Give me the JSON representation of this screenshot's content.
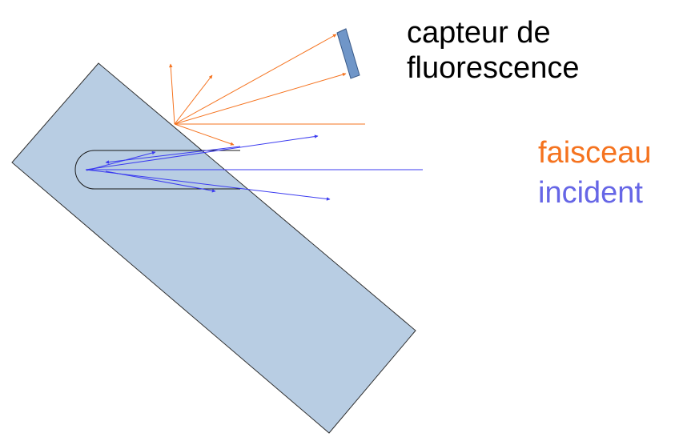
{
  "labels": {
    "sensor_line1": "capteur de",
    "sensor_line2": "fluorescence",
    "beam_line1": "faisceau",
    "beam_line2": "incident"
  },
  "colors": {
    "sample_fill": "#b8cde3",
    "sample_stroke": "#2f2f2f",
    "sensor_fill": "#7096c8",
    "sensor_stroke": "#3a5a88",
    "fluorescence": "#f5731f",
    "incident": "#3b3bf0",
    "incident_label": "#6666e6",
    "text": "#000000"
  }
}
